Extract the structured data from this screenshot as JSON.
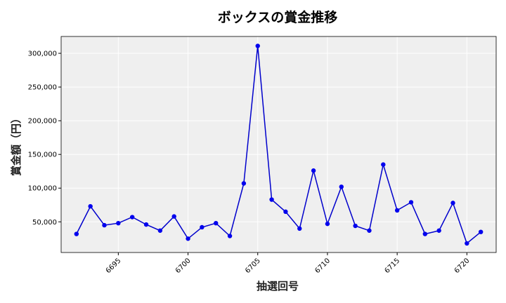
{
  "chart_data": {
    "type": "line",
    "title": "ボックスの賞金推移",
    "xlabel": "抽選回号",
    "ylabel": "賞金額（円）",
    "xlim": [
      6690.9,
      6722.1
    ],
    "ylim": [
      4500,
      325000
    ],
    "x_ticks": [
      6695,
      6700,
      6705,
      6710,
      6715,
      6720
    ],
    "y_ticks": [
      50000,
      100000,
      150000,
      200000,
      250000,
      300000
    ],
    "x_tick_labels": [
      "6695",
      "6700",
      "6705",
      "6710",
      "6715",
      "6720"
    ],
    "y_tick_labels": [
      "50,000",
      "100,000",
      "150,000",
      "200,000",
      "250,000",
      "300,000"
    ],
    "grid": true,
    "line_color": "#0000cc",
    "marker_color": "#0000ee",
    "plot_background": "#efefef",
    "series": [
      {
        "x": [
          6692,
          6693,
          6694,
          6695,
          6696,
          6697,
          6698,
          6699,
          6700,
          6701,
          6702,
          6703,
          6704,
          6705,
          6706,
          6707,
          6708,
          6709,
          6710,
          6711,
          6712,
          6713,
          6714,
          6715,
          6716,
          6717,
          6718,
          6719,
          6720,
          6721
        ],
        "values": [
          32000,
          73000,
          45000,
          48000,
          57000,
          46000,
          37000,
          58000,
          25000,
          42000,
          48000,
          29000,
          107000,
          311000,
          83000,
          65000,
          40000,
          126000,
          47000,
          102000,
          44000,
          37000,
          135000,
          67000,
          79000,
          32000,
          37000,
          78000,
          18000,
          35000
        ]
      }
    ]
  }
}
